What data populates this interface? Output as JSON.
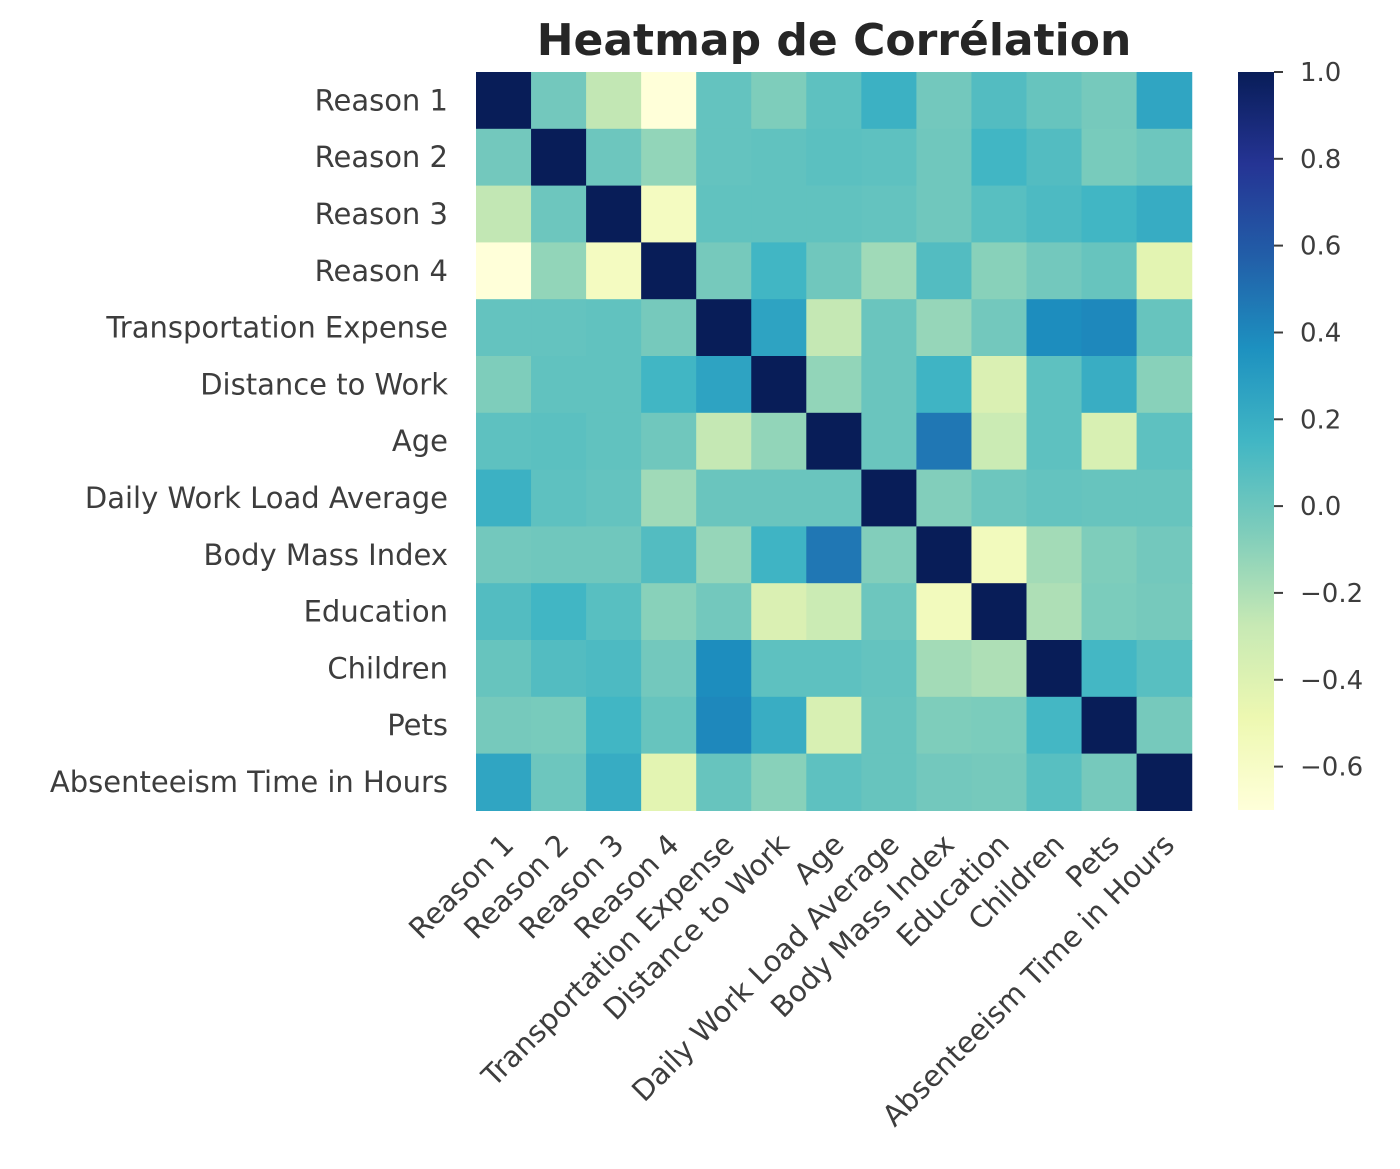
{
  "chart_data": {
    "type": "heatmap",
    "title": "Heatmap de Corrélation",
    "labels": [
      "Reason 1",
      "Reason 2",
      "Reason 3",
      "Reason 4",
      "Transportation Expense",
      "Distance to Work",
      "Age",
      "Daily Work Load Average",
      "Body Mass Index",
      "Education",
      "Children",
      "Pets",
      "Absenteeism Time in Hours"
    ],
    "matrix": [
      [
        1.0,
        -0.02,
        -0.26,
        -0.7,
        0.03,
        -0.06,
        0.05,
        0.18,
        -0.02,
        0.09,
        0.02,
        -0.03,
        0.25
      ],
      [
        -0.02,
        1.0,
        0.0,
        -0.12,
        0.03,
        0.04,
        0.06,
        0.05,
        -0.01,
        0.15,
        0.09,
        -0.04,
        0.0
      ],
      [
        -0.26,
        0.0,
        1.0,
        -0.57,
        0.04,
        0.04,
        0.04,
        0.03,
        -0.01,
        0.07,
        0.11,
        0.15,
        0.21
      ],
      [
        -0.7,
        -0.12,
        -0.57,
        1.0,
        -0.03,
        0.15,
        -0.01,
        -0.16,
        0.09,
        -0.09,
        -0.02,
        0.02,
        -0.43
      ],
      [
        0.03,
        0.03,
        0.04,
        -0.03,
        1.0,
        0.26,
        -0.27,
        0.01,
        -0.13,
        -0.02,
        0.38,
        0.4,
        0.02
      ],
      [
        -0.06,
        0.04,
        0.04,
        0.15,
        0.26,
        1.0,
        -0.12,
        0.01,
        0.16,
        -0.38,
        0.05,
        0.2,
        -0.09
      ],
      [
        0.05,
        0.06,
        0.04,
        -0.01,
        -0.27,
        -0.12,
        1.0,
        0.01,
        0.47,
        -0.3,
        0.05,
        -0.37,
        0.05
      ],
      [
        0.18,
        0.05,
        0.03,
        -0.16,
        0.01,
        0.01,
        0.01,
        1.0,
        -0.07,
        0.0,
        0.03,
        0.02,
        0.02
      ],
      [
        -0.02,
        -0.01,
        -0.01,
        0.09,
        -0.13,
        0.16,
        0.47,
        -0.07,
        1.0,
        -0.55,
        -0.17,
        -0.06,
        -0.02
      ],
      [
        0.09,
        0.15,
        0.07,
        -0.09,
        -0.02,
        -0.38,
        -0.3,
        0.0,
        -0.55,
        1.0,
        -0.2,
        -0.05,
        -0.03
      ],
      [
        0.02,
        0.09,
        0.11,
        -0.02,
        0.38,
        0.05,
        0.05,
        0.03,
        -0.17,
        -0.2,
        1.0,
        0.14,
        0.07
      ],
      [
        -0.03,
        -0.04,
        0.15,
        0.02,
        0.4,
        0.2,
        -0.37,
        0.02,
        -0.06,
        -0.05,
        0.14,
        1.0,
        -0.03
      ],
      [
        0.25,
        0.0,
        0.21,
        -0.43,
        0.02,
        -0.09,
        0.05,
        0.02,
        -0.02,
        -0.03,
        0.07,
        -0.03,
        1.0
      ]
    ],
    "colormap": "YlGnBu",
    "vmin": -0.7,
    "vmax": 1.0,
    "colorbar_ticks": [
      {
        "value": 1.0,
        "label": "1.0"
      },
      {
        "value": 0.8,
        "label": "0.8"
      },
      {
        "value": 0.6,
        "label": "0.6"
      },
      {
        "value": 0.4,
        "label": "0.4"
      },
      {
        "value": 0.2,
        "label": "0.2"
      },
      {
        "value": 0.0,
        "label": "0.0"
      },
      {
        "value": -0.2,
        "label": "−0.2"
      },
      {
        "value": -0.4,
        "label": "−0.4"
      },
      {
        "value": -0.6,
        "label": "−0.6"
      }
    ],
    "colorbar_stops": [
      {
        "t": 0.0,
        "color": "#ffffd9"
      },
      {
        "t": 0.125,
        "color": "#edf8b1"
      },
      {
        "t": 0.25,
        "color": "#c7e9b4"
      },
      {
        "t": 0.375,
        "color": "#7fcdbb"
      },
      {
        "t": 0.5,
        "color": "#41b6c4"
      },
      {
        "t": 0.625,
        "color": "#1d91c0"
      },
      {
        "t": 0.75,
        "color": "#225ea8"
      },
      {
        "t": 0.875,
        "color": "#253494"
      },
      {
        "t": 1.0,
        "color": "#081d58"
      }
    ]
  }
}
